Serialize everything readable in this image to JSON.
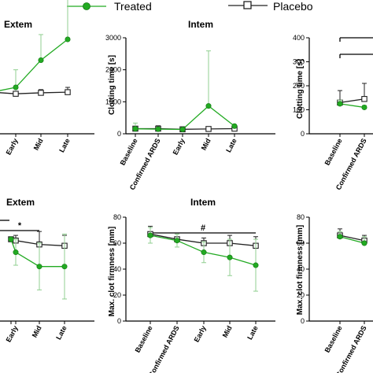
{
  "legend": [
    {
      "label": "Treated",
      "color": "#22aa22",
      "marker": "filled-circle"
    },
    {
      "label": "Placebo",
      "color": "#222222",
      "marker": "open-square"
    }
  ],
  "colors": {
    "treated": "#22aa22",
    "treated_err": "#90cf90",
    "placebo": "#222222"
  },
  "chart_data": [
    {
      "type": "line",
      "title": "Extem",
      "ylabel": "",
      "categories": [
        "",
        "Early",
        "Mid",
        "Late"
      ],
      "ylim": [
        0,
        300
      ],
      "yticks": [],
      "show_y_axis": false,
      "series": [
        {
          "name": "Treated",
          "values": [
            130,
            145,
            230,
            295
          ],
          "err": [
            0,
            55,
            80,
            260
          ]
        },
        {
          "name": "Placebo",
          "values": [
            130,
            125,
            128,
            130
          ],
          "err": [
            0,
            6,
            10,
            15
          ]
        }
      ],
      "annotations": []
    },
    {
      "type": "line",
      "title": "Intem",
      "ylabel": "Clotting time [s]",
      "categories": [
        "Baseline",
        "Confirmed ARDS",
        "Early",
        "Mid",
        "Late"
      ],
      "ylim": [
        0,
        3000
      ],
      "yticks": [
        0,
        1000,
        2000,
        3000
      ],
      "series": [
        {
          "name": "Treated",
          "values": [
            155,
            145,
            135,
            870,
            240
          ],
          "err": [
            180,
            40,
            30,
            1720,
            40
          ]
        },
        {
          "name": "Placebo",
          "values": [
            160,
            160,
            140,
            150,
            160
          ],
          "err": [
            70,
            90,
            20,
            20,
            20
          ]
        }
      ],
      "annotations": []
    },
    {
      "type": "line",
      "title": "",
      "ylabel": "Clotting time [s]",
      "categories": [
        "Baseline",
        "Confirmed ARDS"
      ],
      "ylim": [
        0,
        400
      ],
      "yticks": [
        0,
        100,
        200,
        300,
        400
      ],
      "series": [
        {
          "name": "Treated",
          "values": [
            125,
            110
          ],
          "err": [
            15,
            8
          ]
        },
        {
          "name": "Placebo",
          "values": [
            130,
            145
          ],
          "err": [
            50,
            65
          ]
        }
      ],
      "annotations": [
        {
          "text": "",
          "from": 0,
          "to": 1.3,
          "y": 415
        },
        {
          "text": "",
          "from": 0,
          "to": 1.3,
          "y": 340
        }
      ]
    },
    {
      "type": "line",
      "title": "Extem",
      "ylabel": "",
      "categories": [
        "",
        "Early",
        "Mid",
        "Late"
      ],
      "ylim": [
        0,
        80
      ],
      "yticks": [],
      "show_y_axis": false,
      "series": [
        {
          "name": "Treated",
          "values": [
            63,
            53,
            42,
            42
          ],
          "err": [
            0,
            10,
            18,
            25
          ]
        },
        {
          "name": "Placebo",
          "values": [
            63,
            62,
            59,
            58
          ],
          "err": [
            0,
            4,
            10,
            8
          ]
        }
      ],
      "annotations": [
        {
          "text": "",
          "from": -0.3,
          "to": 0.2,
          "y": 80
        },
        {
          "text": "*",
          "from": -0.3,
          "to": 2.0,
          "y": 73
        }
      ]
    },
    {
      "type": "line",
      "title": "Intem",
      "ylabel": "Max. clot firmness [mm]",
      "categories": [
        "Baseline",
        "Confirmed ARDS",
        "Early",
        "Mid",
        "Late"
      ],
      "ylim": [
        0,
        80
      ],
      "yticks": [
        0,
        20,
        40,
        60,
        80
      ],
      "series": [
        {
          "name": "Treated",
          "values": [
            66,
            62,
            53,
            49,
            43
          ],
          "err": [
            6,
            5,
            8,
            14,
            20
          ]
        },
        {
          "name": "Placebo",
          "values": [
            67,
            63,
            60,
            60,
            58
          ],
          "err": [
            6,
            4,
            4,
            6,
            7
          ]
        }
      ],
      "annotations": [
        {
          "text": "#",
          "from": 0,
          "to": 4,
          "y": 75
        }
      ]
    },
    {
      "type": "line",
      "title": "",
      "ylabel": "Max. clot firmness [mm]",
      "categories": [
        "Baseline",
        "Confirmed ARDS"
      ],
      "ylim": [
        0,
        80
      ],
      "yticks": [
        0,
        20,
        40,
        60,
        80
      ],
      "series": [
        {
          "name": "Treated",
          "values": [
            65,
            60
          ],
          "err": [
            4,
            5
          ]
        },
        {
          "name": "Placebo",
          "values": [
            66,
            62
          ],
          "err": [
            5,
            4
          ]
        }
      ],
      "annotations": []
    }
  ]
}
